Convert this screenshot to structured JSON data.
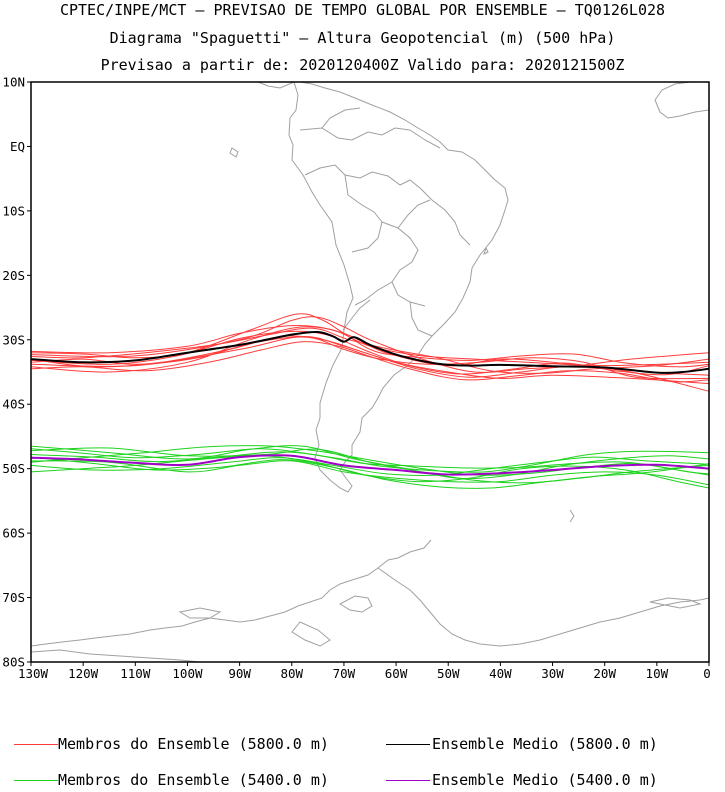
{
  "header": {
    "line1": "CPTEC/INPE/MCT — PREVISAO DE TEMPO GLOBAL POR ENSEMBLE — TQ0126L028",
    "line2": "Diagrama \"Spaguetti\" — Altura Geopotencial (m) (500 hPa)",
    "line3": "Previsao a partir de: 2020120400Z   Valido para: 2020121500Z"
  },
  "axes": {
    "lat_labels": [
      "10N",
      "EQ",
      "10S",
      "20S",
      "30S",
      "40S",
      "50S",
      "60S",
      "70S",
      "80S"
    ],
    "lon_labels": [
      "130W",
      "120W",
      "110W",
      "100W",
      "90W",
      "80W",
      "70W",
      "60W",
      "50W",
      "40W",
      "30W",
      "20W",
      "10W",
      "0"
    ]
  },
  "legend": {
    "members_5800": "Membros do Ensemble (5800.0 m)",
    "mean_5800": "Ensemble Medio (5800.0 m)",
    "members_5400": "Membros do Ensemble (5400.0 m)",
    "mean_5400": "Ensemble Medio (5400.0 m)"
  },
  "colors": {
    "members_5800": "#ff3c3c",
    "mean_5800": "#000000",
    "members_5400": "#1ed21e",
    "mean_5400": "#a000c8",
    "coastline": "#a0a0a0"
  },
  "chart_data": {
    "type": "map-contours",
    "variable": "geopotential height 500 hPa",
    "lon_range": [
      -130,
      0
    ],
    "lat_range": [
      -80,
      10
    ],
    "contours": {
      "mean_5800": [
        [
          -130,
          -33
        ],
        [
          -120,
          -33.5
        ],
        [
          -110,
          -33.2
        ],
        [
          -100,
          -32
        ],
        [
          -90,
          -30.8
        ],
        [
          -80,
          -29.2
        ],
        [
          -75,
          -28.8
        ],
        [
          -72,
          -29.5
        ],
        [
          -70,
          -30.3
        ],
        [
          -68,
          -29.6
        ],
        [
          -65,
          -30.8
        ],
        [
          -60,
          -32.3
        ],
        [
          -55,
          -33.3
        ],
        [
          -50,
          -33.9
        ],
        [
          -45,
          -34
        ],
        [
          -40,
          -33.9
        ],
        [
          -30,
          -34.1
        ],
        [
          -20,
          -34.3
        ],
        [
          -10,
          -35.1
        ],
        [
          -5,
          -35
        ],
        [
          0,
          -34.5
        ]
      ],
      "mean_5400": [
        [
          -130,
          -48.3
        ],
        [
          -120,
          -48.6
        ],
        [
          -110,
          -49.1
        ],
        [
          -100,
          -49.4
        ],
        [
          -90,
          -48.2
        ],
        [
          -80,
          -48
        ],
        [
          -70,
          -49.5
        ],
        [
          -60,
          -50.2
        ],
        [
          -50,
          -50.9
        ],
        [
          -40,
          -50.7
        ],
        [
          -30,
          -50.2
        ],
        [
          -20,
          -49.6
        ],
        [
          -10,
          -49.4
        ],
        [
          0,
          -50
        ]
      ],
      "members_5800": [
        [
          [
            -130,
            -32.3
          ],
          [
            -110,
            -32.5
          ],
          [
            -90,
            -30
          ],
          [
            -80,
            -27
          ],
          [
            -75,
            -26.5
          ],
          [
            -70,
            -28
          ],
          [
            -65,
            -30
          ],
          [
            -55,
            -33
          ],
          [
            -45,
            -35
          ],
          [
            -35,
            -34.5
          ],
          [
            -25,
            -34
          ],
          [
            -15,
            -33
          ],
          [
            0,
            -32
          ]
        ],
        [
          [
            -130,
            -33.8
          ],
          [
            -110,
            -34
          ],
          [
            -90,
            -31.5
          ],
          [
            -78,
            -29.5
          ],
          [
            -70,
            -31
          ],
          [
            -60,
            -33.5
          ],
          [
            -50,
            -35
          ],
          [
            -40,
            -36
          ],
          [
            -30,
            -35.5
          ],
          [
            -15,
            -36
          ],
          [
            0,
            -36.8
          ]
        ],
        [
          [
            -130,
            -34.2
          ],
          [
            -115,
            -35
          ],
          [
            -100,
            -33.5
          ],
          [
            -88,
            -30
          ],
          [
            -78,
            -28
          ],
          [
            -70,
            -29
          ],
          [
            -62,
            -32
          ],
          [
            -50,
            -34
          ],
          [
            -40,
            -33
          ],
          [
            -30,
            -33.5
          ],
          [
            -15,
            -35
          ],
          [
            0,
            -38
          ]
        ],
        [
          [
            -130,
            -31.8
          ],
          [
            -115,
            -32
          ],
          [
            -100,
            -31
          ],
          [
            -90,
            -29
          ],
          [
            -80,
            -27.8
          ],
          [
            -72,
            -28.5
          ],
          [
            -65,
            -31
          ],
          [
            -55,
            -32.5
          ],
          [
            -45,
            -33
          ],
          [
            -35,
            -33.5
          ],
          [
            -20,
            -34
          ],
          [
            0,
            -33.5
          ]
        ],
        [
          [
            -130,
            -33
          ],
          [
            -118,
            -34.2
          ],
          [
            -105,
            -33.5
          ],
          [
            -92,
            -31.5
          ],
          [
            -82,
            -29.5
          ],
          [
            -74,
            -30
          ],
          [
            -66,
            -32
          ],
          [
            -56,
            -34.5
          ],
          [
            -46,
            -35.8
          ],
          [
            -36,
            -35
          ],
          [
            -25,
            -34
          ],
          [
            -12,
            -35
          ],
          [
            0,
            -35.5
          ]
        ],
        [
          [
            -130,
            -32.6
          ],
          [
            -120,
            -32.8
          ],
          [
            -108,
            -32
          ],
          [
            -95,
            -30.8
          ],
          [
            -85,
            -29.3
          ],
          [
            -76,
            -28.2
          ],
          [
            -69,
            -30
          ],
          [
            -61,
            -31.5
          ],
          [
            -52,
            -32.8
          ],
          [
            -42,
            -34.8
          ],
          [
            -32,
            -35.2
          ],
          [
            -22,
            -34.5
          ],
          [
            -10,
            -34
          ],
          [
            0,
            -33
          ]
        ],
        [
          [
            -130,
            -33.5
          ],
          [
            -120,
            -33
          ],
          [
            -110,
            -33.8
          ],
          [
            -98,
            -32.8
          ],
          [
            -87,
            -30.4
          ],
          [
            -77,
            -29.6
          ],
          [
            -70,
            -31.5
          ],
          [
            -63,
            -33
          ],
          [
            -54,
            -33.8
          ],
          [
            -44,
            -33.5
          ],
          [
            -34,
            -32.8
          ],
          [
            -24,
            -33.5
          ],
          [
            -14,
            -35.8
          ],
          [
            0,
            -36
          ]
        ],
        [
          [
            -130,
            -33.2
          ],
          [
            -115,
            -33.8
          ],
          [
            -102,
            -32.5
          ],
          [
            -90,
            -29.8
          ],
          [
            -80,
            -28.7
          ],
          [
            -73,
            -29.3
          ],
          [
            -66,
            -31.6
          ],
          [
            -58,
            -33.9
          ],
          [
            -48,
            -35.3
          ],
          [
            -38,
            -34.6
          ],
          [
            -28,
            -33.6
          ],
          [
            -18,
            -34.8
          ],
          [
            -8,
            -35.4
          ],
          [
            0,
            -34
          ]
        ],
        [
          [
            -130,
            -32
          ],
          [
            -120,
            -32.2
          ],
          [
            -110,
            -32.8
          ],
          [
            -100,
            -32
          ],
          [
            -88,
            -28.5
          ],
          [
            -79,
            -26
          ],
          [
            -74,
            -27
          ],
          [
            -70,
            -29
          ],
          [
            -64,
            -31.8
          ],
          [
            -56,
            -32.7
          ],
          [
            -46,
            -33.2
          ],
          [
            -36,
            -32.5
          ],
          [
            -26,
            -32.2
          ],
          [
            -16,
            -33.6
          ],
          [
            -6,
            -34.2
          ],
          [
            0,
            -33.8
          ]
        ],
        [
          [
            -130,
            -34.5
          ],
          [
            -120,
            -34.2
          ],
          [
            -108,
            -34.8
          ],
          [
            -96,
            -33.5
          ],
          [
            -86,
            -31.6
          ],
          [
            -78,
            -30.3
          ],
          [
            -71,
            -31
          ],
          [
            -65,
            -32.6
          ],
          [
            -57,
            -34.6
          ],
          [
            -47,
            -36.2
          ],
          [
            -37,
            -35.6
          ],
          [
            -27,
            -34.8
          ],
          [
            -17,
            -35.2
          ],
          [
            -7,
            -36.5
          ],
          [
            0,
            -36.2
          ]
        ]
      ],
      "members_5400": [
        [
          [
            -130,
            -46.5
          ],
          [
            -115,
            -47.5
          ],
          [
            -100,
            -48.5
          ],
          [
            -88,
            -47
          ],
          [
            -78,
            -46.5
          ],
          [
            -68,
            -48.5
          ],
          [
            -58,
            -50
          ],
          [
            -48,
            -51.5
          ],
          [
            -38,
            -51
          ],
          [
            -28,
            -49.5
          ],
          [
            -18,
            -48.5
          ],
          [
            -8,
            -48
          ],
          [
            0,
            -48.5
          ]
        ],
        [
          [
            -130,
            -48.8
          ],
          [
            -115,
            -49
          ],
          [
            -100,
            -50.5
          ],
          [
            -90,
            -49.5
          ],
          [
            -80,
            -48.8
          ],
          [
            -70,
            -50.5
          ],
          [
            -60,
            -51.5
          ],
          [
            -50,
            -52
          ],
          [
            -40,
            -52
          ],
          [
            -30,
            -51
          ],
          [
            -20,
            -50.5
          ],
          [
            -10,
            -51
          ],
          [
            0,
            -52.5
          ]
        ],
        [
          [
            -130,
            -47.2
          ],
          [
            -115,
            -46.8
          ],
          [
            -100,
            -48
          ],
          [
            -85,
            -47.8
          ],
          [
            -75,
            -47
          ],
          [
            -65,
            -49
          ],
          [
            -55,
            -50.5
          ],
          [
            -45,
            -51.8
          ],
          [
            -35,
            -52.2
          ],
          [
            -25,
            -51.5
          ],
          [
            -15,
            -50.5
          ],
          [
            -5,
            -49.8
          ],
          [
            0,
            -49.5
          ]
        ],
        [
          [
            -130,
            -49.5
          ],
          [
            -118,
            -50.2
          ],
          [
            -105,
            -50
          ],
          [
            -92,
            -49
          ],
          [
            -82,
            -48.3
          ],
          [
            -72,
            -49.5
          ],
          [
            -62,
            -50.8
          ],
          [
            -52,
            -51
          ],
          [
            -42,
            -50
          ],
          [
            -32,
            -49
          ],
          [
            -22,
            -48.2
          ],
          [
            -12,
            -48.8
          ],
          [
            0,
            -49.3
          ]
        ],
        [
          [
            -130,
            -50.5
          ],
          [
            -120,
            -50
          ],
          [
            -110,
            -49.5
          ],
          [
            -98,
            -48.6
          ],
          [
            -86,
            -48
          ],
          [
            -76,
            -49
          ],
          [
            -66,
            -51
          ],
          [
            -56,
            -52
          ],
          [
            -46,
            -51.5
          ],
          [
            -36,
            -50
          ],
          [
            -26,
            -49.6
          ],
          [
            -16,
            -50.2
          ],
          [
            -6,
            -52
          ],
          [
            0,
            -53
          ]
        ],
        [
          [
            -130,
            -47.8
          ],
          [
            -118,
            -48.2
          ],
          [
            -106,
            -48.9
          ],
          [
            -94,
            -48.2
          ],
          [
            -82,
            -47.4
          ],
          [
            -72,
            -48.3
          ],
          [
            -63,
            -49.6
          ],
          [
            -53,
            -50.3
          ],
          [
            -43,
            -50.5
          ],
          [
            -33,
            -49.3
          ],
          [
            -23,
            -47.8
          ],
          [
            -13,
            -47.3
          ],
          [
            0,
            -47.5
          ]
        ],
        [
          [
            -130,
            -49
          ],
          [
            -120,
            -48.3
          ],
          [
            -108,
            -47.5
          ],
          [
            -96,
            -46.6
          ],
          [
            -84,
            -46.5
          ],
          [
            -74,
            -47.4
          ],
          [
            -64,
            -48.8
          ],
          [
            -54,
            -50.1
          ],
          [
            -44,
            -51
          ],
          [
            -34,
            -50.7
          ],
          [
            -24,
            -49.8
          ],
          [
            -14,
            -49.2
          ],
          [
            -4,
            -50.5
          ],
          [
            0,
            -50.8
          ]
        ],
        [
          [
            -130,
            -48.2
          ],
          [
            -118,
            -49.2
          ],
          [
            -106,
            -50.2
          ],
          [
            -94,
            -49.8
          ],
          [
            -82,
            -48.6
          ],
          [
            -72,
            -49.8
          ],
          [
            -62,
            -51.7
          ],
          [
            -52,
            -52.8
          ],
          [
            -42,
            -53
          ],
          [
            -32,
            -52.1
          ],
          [
            -22,
            -51.2
          ],
          [
            -12,
            -50.6
          ],
          [
            -2,
            -49.5
          ],
          [
            0,
            -49.2
          ]
        ],
        [
          [
            -130,
            -46.9
          ],
          [
            -120,
            -47.6
          ],
          [
            -110,
            -48.3
          ],
          [
            -98,
            -47.8
          ],
          [
            -86,
            -46.9
          ],
          [
            -76,
            -47.8
          ],
          [
            -66,
            -49.2
          ],
          [
            -56,
            -49.6
          ],
          [
            -46,
            -49.9
          ],
          [
            -36,
            -49.8
          ],
          [
            -26,
            -49.2
          ],
          [
            -16,
            -49
          ],
          [
            -6,
            -50.2
          ],
          [
            0,
            -51
          ]
        ]
      ]
    }
  }
}
